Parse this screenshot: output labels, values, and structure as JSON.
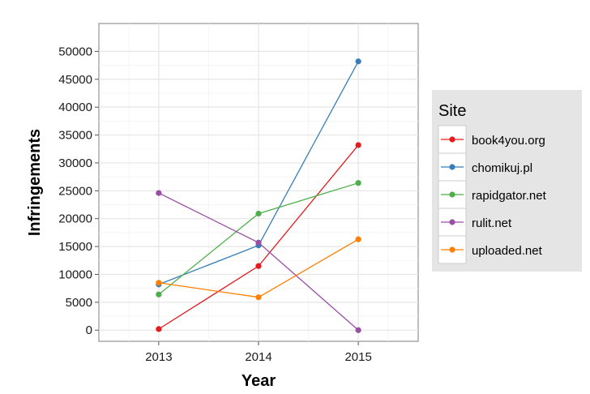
{
  "chart_data": {
    "type": "line",
    "title": "",
    "xlabel": "Year",
    "ylabel": "Infringements",
    "x": [
      2013,
      2014,
      2015
    ],
    "x_ticks": [
      "2013",
      "2014",
      "2015"
    ],
    "xlim": [
      2012.4,
      2015.6
    ],
    "ylim": [
      -2000,
      55000
    ],
    "y_ticks": [
      0,
      5000,
      10000,
      15000,
      20000,
      25000,
      30000,
      35000,
      40000,
      45000,
      50000
    ],
    "y_tick_labels": [
      "0",
      "5000",
      "10000",
      "15000",
      "20000",
      "25000",
      "30000",
      "35000",
      "40000",
      "45000",
      "50000"
    ],
    "grid": true,
    "legend": {
      "title": "Site",
      "position": "right"
    },
    "series": [
      {
        "name": "book4you.org",
        "color": "#e41a1c",
        "values": [
          200,
          11500,
          33200
        ]
      },
      {
        "name": "chomikuj.pl",
        "color": "#377eb8",
        "values": [
          8200,
          15200,
          48200
        ]
      },
      {
        "name": "rapidgator.net",
        "color": "#4daf4a",
        "values": [
          6400,
          20900,
          26400
        ]
      },
      {
        "name": "rulit.net",
        "color": "#984ea3",
        "values": [
          24600,
          15700,
          0
        ]
      },
      {
        "name": "uploaded.net",
        "color": "#ff7f00",
        "values": [
          8500,
          5900,
          16300
        ]
      }
    ]
  }
}
